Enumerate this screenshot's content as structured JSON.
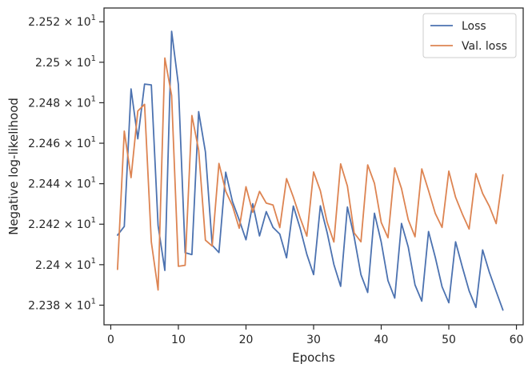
{
  "chart_data": {
    "type": "line",
    "xlabel": "Epochs",
    "ylabel": "Negative log-likelihood",
    "xlim": [
      -1,
      61
    ],
    "ylim": [
      22.3703,
      22.5268
    ],
    "x_ticks": [
      0,
      10,
      20,
      30,
      40,
      50,
      60
    ],
    "x_tick_labels": [
      "0",
      "10",
      "20",
      "30",
      "40",
      "50",
      "60"
    ],
    "y_ticks": [
      22.38,
      22.4,
      22.42,
      22.44,
      22.46,
      22.48,
      22.5,
      22.52
    ],
    "y_tick_labels": [
      {
        "mantissa": "2.238",
        "base": "10",
        "exp": "1"
      },
      {
        "mantissa": "2.24",
        "base": "10",
        "exp": "1"
      },
      {
        "mantissa": "2.242",
        "base": "10",
        "exp": "1"
      },
      {
        "mantissa": "2.244",
        "base": "10",
        "exp": "1"
      },
      {
        "mantissa": "2.246",
        "base": "10",
        "exp": "1"
      },
      {
        "mantissa": "2.248",
        "base": "10",
        "exp": "1"
      },
      {
        "mantissa": "2.25",
        "base": "10",
        "exp": "1"
      },
      {
        "mantissa": "2.252",
        "base": "10",
        "exp": "1"
      }
    ],
    "legend_position": "top-right",
    "x": [
      1,
      2,
      3,
      4,
      5,
      6,
      7,
      8,
      9,
      10,
      11,
      12,
      13,
      14,
      15,
      16,
      17,
      18,
      19,
      20,
      21,
      22,
      23,
      24,
      25,
      26,
      27,
      28,
      29,
      30,
      31,
      32,
      33,
      34,
      35,
      36,
      37,
      38,
      39,
      40,
      41,
      42,
      43,
      44,
      45,
      46,
      47,
      48,
      49,
      50,
      51,
      52,
      53,
      54,
      55,
      56,
      57,
      58
    ],
    "series": [
      {
        "name": "Loss",
        "color": "#4c72b0",
        "values": [
          22.4146,
          22.4189,
          22.4868,
          22.4622,
          22.4892,
          22.4888,
          22.4193,
          22.3972,
          22.5153,
          22.489,
          22.4059,
          22.405,
          22.4756,
          22.4557,
          22.4096,
          22.406,
          22.4457,
          22.4312,
          22.4221,
          22.4123,
          22.4301,
          22.4142,
          22.4262,
          22.4184,
          22.4151,
          22.4034,
          22.429,
          22.4181,
          22.4051,
          22.3951,
          22.4291,
          22.4159,
          22.4001,
          22.3893,
          22.4285,
          22.4137,
          22.3951,
          22.3863,
          22.4254,
          22.4112,
          22.3921,
          22.3835,
          22.4204,
          22.4087,
          22.39,
          22.382,
          22.4164,
          22.4036,
          22.3891,
          22.3812,
          22.4113,
          22.3988,
          22.3871,
          22.3789,
          22.4073,
          22.3962,
          22.3868,
          22.3776
        ]
      },
      {
        "name": "Val. loss",
        "color": "#dd8452",
        "values": [
          22.3977,
          22.466,
          22.443,
          22.4759,
          22.4792,
          22.4112,
          22.3875,
          22.5021,
          22.4836,
          22.3992,
          22.3997,
          22.4737,
          22.4566,
          22.4121,
          22.4092,
          22.45,
          22.4363,
          22.4291,
          22.418,
          22.4385,
          22.4259,
          22.4362,
          22.4304,
          22.4295,
          22.4183,
          22.4425,
          22.4334,
          22.4232,
          22.4141,
          22.4458,
          22.4365,
          22.421,
          22.4112,
          22.4498,
          22.4388,
          22.4157,
          22.4113,
          22.4493,
          22.4402,
          22.4209,
          22.4133,
          22.4478,
          22.4376,
          22.4222,
          22.4138,
          22.4473,
          22.4366,
          22.4253,
          22.4184,
          22.4462,
          22.4333,
          22.425,
          22.4176,
          22.445,
          22.4352,
          22.4288,
          22.4203,
          22.4444
        ]
      }
    ]
  }
}
